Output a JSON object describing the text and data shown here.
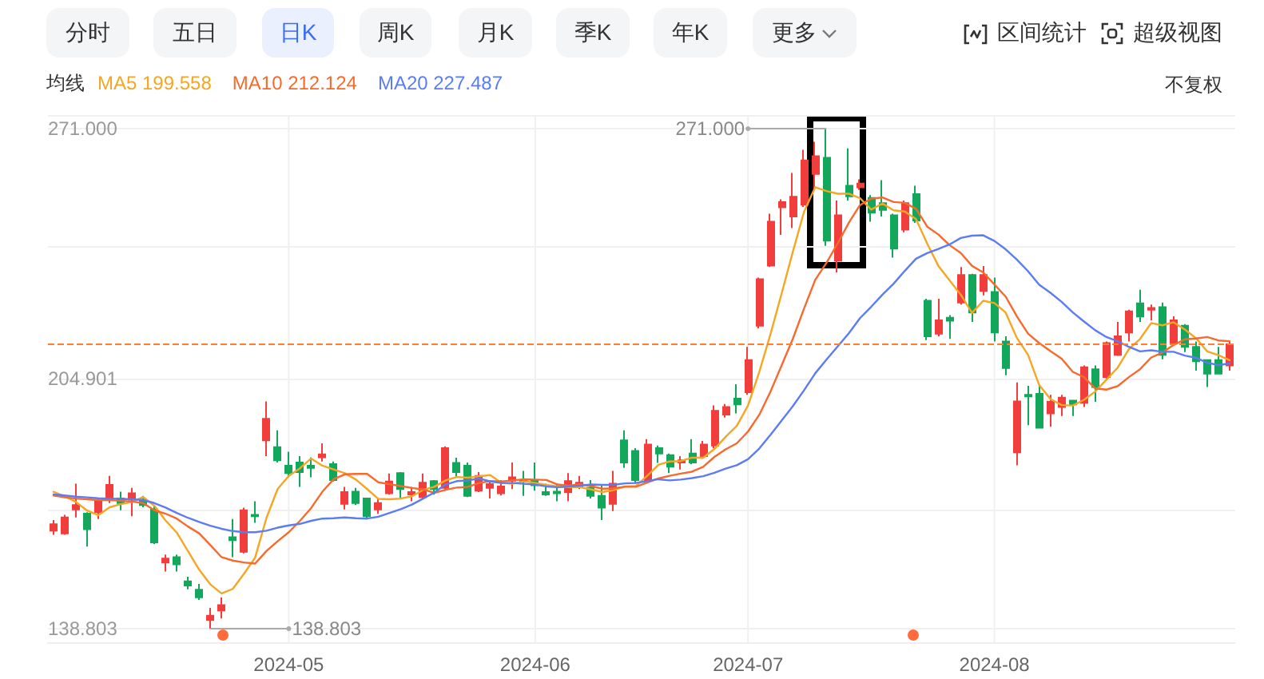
{
  "chart_data": {
    "type": "candlestick",
    "categories": [
      null,
      null,
      null,
      null,
      null,
      null,
      null,
      null,
      null,
      null,
      null,
      null,
      null,
      null,
      null,
      null,
      null,
      null,
      null,
      null,
      null,
      "2024-05",
      null,
      null,
      null,
      null,
      null,
      null,
      null,
      null,
      null,
      null,
      null,
      null,
      null,
      null,
      null,
      null,
      null,
      null,
      null,
      null,
      null,
      "2024-06",
      null,
      null,
      null,
      null,
      null,
      null,
      null,
      null,
      null,
      null,
      null,
      null,
      null,
      null,
      null,
      null,
      null,
      null,
      "2024-07",
      null,
      null,
      null,
      null,
      null,
      null,
      null,
      null,
      null,
      null,
      null,
      null,
      null,
      null,
      null,
      null,
      null,
      null,
      null,
      null,
      null,
      "2024-08",
      null,
      null,
      null,
      null,
      null,
      null,
      null,
      null,
      null,
      null,
      null,
      null,
      null,
      null,
      null,
      null,
      null,
      null,
      null,
      null,
      null
    ],
    "ohlc": [
      [
        164.7,
        167.5,
        163.6,
        166.4
      ],
      [
        164.0,
        168.9,
        163.6,
        168.2
      ],
      [
        170.3,
        177.1,
        168.2,
        171.5
      ],
      [
        169.2,
        169.6,
        160.5,
        165.1
      ],
      [
        169.6,
        173.2,
        167.8,
        172.9
      ],
      [
        172.9,
        179.2,
        172.0,
        176.8
      ],
      [
        173.2,
        175.0,
        170.1,
        172.0
      ],
      [
        172.9,
        176.0,
        168.5,
        174.6
      ],
      [
        172.9,
        173.9,
        170.9,
        171.5
      ],
      [
        170.3,
        171.1,
        161.2,
        161.6
      ],
      [
        156.3,
        158.4,
        153.9,
        157.3
      ],
      [
        157.7,
        158.4,
        153.9,
        155.8
      ],
      [
        151.3,
        152.5,
        149.2,
        150.2
      ],
      [
        149.1,
        150.6,
        146.4,
        147.1
      ],
      [
        141.1,
        144.3,
        138.803,
        142.2
      ],
      [
        143.6,
        147.1,
        141.5,
        145.0
      ],
      [
        163.0,
        167.8,
        157.7,
        162.2
      ],
      [
        159.1,
        170.8,
        158.7,
        170.1
      ],
      [
        168.9,
        172.5,
        166.8,
        168.5
      ],
      [
        188.6,
        198.9,
        184.4,
        194.3
      ],
      [
        186.8,
        191.2,
        182.7,
        183.3
      ],
      [
        181.9,
        185.6,
        178.8,
        179.9
      ],
      [
        182.7,
        184.4,
        176.3,
        180.2
      ],
      [
        181.9,
        184.1,
        178.8,
        181.3
      ],
      [
        184.1,
        187.8,
        183.0,
        184.9
      ],
      [
        182.3,
        183.0,
        177.7,
        178.1
      ],
      [
        171.8,
        176.3,
        170.3,
        174.9
      ],
      [
        175.0,
        176.0,
        171.5,
        172.0
      ],
      [
        173.2,
        173.4,
        167.8,
        168.5
      ],
      [
        170.3,
        173.2,
        169.2,
        172.0
      ],
      [
        174.6,
        179.8,
        174.2,
        177.7
      ],
      [
        179.9,
        180.2,
        173.4,
        175.7
      ],
      [
        174.3,
        176.3,
        172.5,
        174.9
      ],
      [
        173.6,
        179.8,
        173.2,
        177.4
      ],
      [
        177.8,
        178.1,
        174.2,
        175.7
      ],
      [
        176.0,
        187.0,
        175.3,
        186.5
      ],
      [
        182.6,
        184.0,
        178.8,
        180.2
      ],
      [
        181.9,
        182.7,
        173.6,
        173.9
      ],
      [
        175.3,
        180.2,
        174.9,
        179.2
      ],
      [
        176.0,
        177.7,
        173.2,
        177.0
      ],
      [
        174.6,
        178.1,
        174.0,
        176.4
      ],
      [
        177.9,
        182.7,
        175.7,
        178.8
      ],
      [
        178.1,
        180.5,
        173.9,
        177.7
      ],
      [
        178.1,
        182.7,
        175.3,
        176.7
      ],
      [
        174.9,
        177.1,
        173.9,
        174.3
      ],
      [
        175.0,
        177.1,
        172.5,
        174.6
      ],
      [
        174.9,
        179.9,
        172.5,
        177.8
      ],
      [
        176.3,
        179.2,
        175.7,
        177.4
      ],
      [
        176.0,
        178.1,
        173.2,
        173.9
      ],
      [
        173.9,
        176.7,
        167.5,
        170.8
      ],
      [
        171.8,
        180.5,
        169.9,
        177.1
      ],
      [
        188.6,
        191.2,
        181.3,
        182.7
      ],
      [
        185.8,
        186.5,
        177.1,
        178.1
      ],
      [
        178.1,
        188.9,
        177.7,
        187.5
      ],
      [
        186.5,
        187.2,
        182.6,
        185.1
      ],
      [
        184.7,
        185.1,
        179.9,
        181.6
      ],
      [
        182.7,
        184.4,
        180.9,
        183.3
      ],
      [
        185.1,
        188.9,
        182.3,
        182.7
      ],
      [
        184.4,
        188.4,
        183.7,
        187.5
      ],
      [
        187.2,
        197.8,
        186.5,
        196.4
      ],
      [
        195.4,
        198.2,
        194.6,
        197.4
      ],
      [
        199.6,
        203.4,
        195.7,
        198.1
      ],
      [
        201.3,
        213.3,
        200.6,
        209.8
      ],
      [
        218.9,
        231.6,
        218.2,
        231.2
      ],
      [
        234.8,
        248.5,
        234.4,
        246.4
      ],
      [
        250.2,
        252.3,
        242.9,
        251.6
      ],
      [
        247.8,
        259.3,
        244.7,
        253.0
      ],
      [
        250.9,
        265.4,
        250.3,
        262.6
      ],
      [
        259.0,
        267.5,
        254.8,
        263.7
      ],
      [
        263.3,
        271,
        240.0,
        241.4
      ],
      [
        236.1,
        252.0,
        233.0,
        248.1
      ],
      [
        255.9,
        265.8,
        252.0,
        253.1
      ],
      [
        255.5,
        257.6,
        254.8,
        256.5
      ],
      [
        252.7,
        253.4,
        246.4,
        248.8
      ],
      [
        251.3,
        257.4,
        247.8,
        249.5
      ],
      [
        248.1,
        248.5,
        236.9,
        239.3
      ],
      [
        244.3,
        252.0,
        243.6,
        251.3
      ],
      [
        253.7,
        255.9,
        246.1,
        246.7
      ],
      [
        225.5,
        226.0,
        215.1,
        216.1
      ],
      [
        216.8,
        226.0,
        216.1,
        220.3
      ],
      [
        221.0,
        221.7,
        215.4,
        220.2
      ],
      [
        225.0,
        234.4,
        224.5,
        232.3
      ],
      [
        232.3,
        232.6,
        219.9,
        222.4
      ],
      [
        228.1,
        234.7,
        226.9,
        232.3
      ],
      [
        227.8,
        231.6,
        214.7,
        217.1
      ],
      [
        214.7,
        216.1,
        205.8,
        207.7
      ],
      [
        185.4,
        203.9,
        182.0,
        198.9
      ],
      [
        200.6,
        203.0,
        192.6,
        200.2
      ],
      [
        200.9,
        203.0,
        191.8,
        191.9
      ],
      [
        195.7,
        200.6,
        192.2,
        198.8
      ],
      [
        197.4,
        200.6,
        195.0,
        199.9
      ],
      [
        199.1,
        199.2,
        195.0,
        198.1
      ],
      [
        198.5,
        208.4,
        197.4,
        207.9
      ],
      [
        207.4,
        208.4,
        198.8,
        202.7
      ],
      [
        205.3,
        214.7,
        204.8,
        214.3
      ],
      [
        211.2,
        219.9,
        210.9,
        216.1
      ],
      [
        217.1,
        223.1,
        214.7,
        222.7
      ],
      [
        224.8,
        228.4,
        219.9,
        221.3
      ],
      [
        223.1,
        224.5,
        220.3,
        223.6
      ],
      [
        223.8,
        225.0,
        210.0,
        211.2
      ],
      [
        214.3,
        221.4,
        213.7,
        220.3
      ],
      [
        218.9,
        219.3,
        211.9,
        213.3
      ],
      [
        213.3,
        214.7,
        207.0,
        209.5
      ],
      [
        209.8,
        210.0,
        202.7,
        206.2
      ],
      [
        209.8,
        213.3,
        206.1,
        206.2
      ],
      [
        208.4,
        214.7,
        207.0,
        214.0
      ]
    ],
    "colors": [
      "#f23d3d",
      "#f23d3d",
      "#f23d3d",
      "#12a75b",
      "#f23d3d",
      "#f23d3d",
      "#12a75b",
      "#f23d3d",
      "#12a75b",
      "#12a75b",
      "#f23d3d",
      "#12a75b",
      "#12a75b",
      "#12a75b",
      "#f23d3d",
      "#f23d3d",
      "#12a75b",
      "#f23d3d",
      "#12a75b",
      "#f23d3d",
      "#12a75b",
      "#12a75b",
      "#12a75b",
      "#12a75b",
      "#f23d3d",
      "#12a75b",
      "#f23d3d",
      "#12a75b",
      "#12a75b",
      "#f23d3d",
      "#f23d3d",
      "#12a75b",
      "#f23d3d",
      "#f23d3d",
      "#12a75b",
      "#f23d3d",
      "#12a75b",
      "#12a75b",
      "#f23d3d",
      "#f23d3d",
      "#f23d3d",
      "#f23d3d",
      "#12a75b",
      "#12a75b",
      "#12a75b",
      "#12a75b",
      "#f23d3d",
      "#f23d3d",
      "#12a75b",
      "#12a75b",
      "#f23d3d",
      "#12a75b",
      "#12a75b",
      "#f23d3d",
      "#12a75b",
      "#12a75b",
      "#f23d3d",
      "#12a75b",
      "#f23d3d",
      "#f23d3d",
      "#f23d3d",
      "#12a75b",
      "#f23d3d",
      "#f23d3d",
      "#f23d3d",
      "#f23d3d",
      "#f23d3d",
      "#f23d3d",
      "#f23d3d",
      "#12a75b",
      "#f23d3d",
      "#12a75b",
      "#f23d3d",
      "#12a75b",
      "#12a75b",
      "#12a75b",
      "#f23d3d",
      "#12a75b",
      "#12a75b",
      "#f23d3d",
      "#12a75b",
      "#f23d3d",
      "#12a75b",
      "#f23d3d",
      "#12a75b",
      "#12a75b",
      "#f23d3d",
      "#12a75b",
      "#12a75b",
      "#f23d3d",
      "#f23d3d",
      "#12a75b",
      "#f23d3d",
      "#12a75b",
      "#f23d3d",
      "#f23d3d",
      "#f23d3d",
      "#12a75b",
      "#f23d3d",
      "#12a75b",
      "#f23d3d",
      "#12a75b",
      "#12a75b",
      "#12a75b",
      "#12a75b",
      "#f23d3d"
    ],
    "series": [
      {
        "type": "line",
        "name": "MA5 199.558",
        "color": "#f5a623",
        "values": [
          175.0,
          173.8,
          172.3,
          170.0,
          168.8,
          170.9,
          171.7,
          172.3,
          173.6,
          171.3,
          167.4,
          164.2,
          159.3,
          154.4,
          150.5,
          148.1,
          149.3,
          153.3,
          157.6,
          168.0,
          175.7,
          179.2,
          181.2,
          183.8,
          181.9,
          180.9,
          179.9,
          178.2,
          175.7,
          173.1,
          173.0,
          173.2,
          173.8,
          175.5,
          176.3,
          178.0,
          178.9,
          178.7,
          179.1,
          179.4,
          177.3,
          177.1,
          177.8,
          177.3,
          176.8,
          176.4,
          176.2,
          176.2,
          175.6,
          174.9,
          175.4,
          176.4,
          176.5,
          179.2,
          182.1,
          183.0,
          183.1,
          184.0,
          184.0,
          186.3,
          189.5,
          192.4,
          197.8,
          206.6,
          216.6,
          227.4,
          238.4,
          249.0,
          255.5,
          254.5,
          253.8,
          253.8,
          252.6,
          249.6,
          251.2,
          249.4,
          249.1,
          247.1,
          240.6,
          234.7,
          230.9,
          227.1,
          222.3,
          225.5,
          224.9,
          222.4,
          215.7,
          211.2,
          203.2,
          199.5,
          197.9,
          197.8,
          199.3,
          201.5,
          204.6,
          207.8,
          212.7,
          215.4,
          219.6,
          219.0,
          219.8,
          217.9,
          215.6,
          212.1,
          211.1,
          209.8
        ]
      },
      {
        "type": "line",
        "name": "MA10 212.124",
        "color": "#f8692c",
        "values": [
          174.0,
          173.5,
          173.2,
          173.0,
          172.8,
          172.8,
          172.6,
          172.4,
          172.0,
          170.1,
          169.2,
          167.9,
          165.8,
          164.0,
          160.9,
          157.7,
          156.8,
          156.3,
          156.0,
          159.3,
          161.9,
          164.3,
          167.3,
          170.7,
          175.0,
          178.3,
          179.6,
          179.7,
          179.7,
          177.5,
          177.0,
          176.5,
          176.0,
          175.6,
          174.7,
          175.5,
          176.1,
          176.3,
          177.3,
          177.8,
          177.7,
          178.0,
          178.3,
          178.2,
          178.1,
          176.9,
          176.6,
          177.0,
          176.5,
          175.8,
          175.9,
          176.3,
          176.3,
          177.4,
          178.5,
          179.2,
          179.8,
          180.3,
          181.6,
          184.2,
          186.2,
          187.8,
          190.9,
          195.3,
          201.4,
          208.4,
          215.4,
          223.4,
          231.0,
          235.5,
          240.6,
          246.1,
          250.8,
          252.5,
          252.8,
          251.6,
          251.4,
          249.8,
          245.1,
          243.0,
          240.2,
          238.1,
          234.7,
          233.0,
          229.8,
          226.6,
          221.4,
          216.8,
          214.3,
          212.2,
          210.2,
          206.7,
          205.3,
          202.3,
          202.0,
          202.9,
          205.3,
          207.4,
          210.5,
          211.8,
          213.8,
          215.3,
          215.5,
          215.9,
          215.0,
          214.8
        ]
      },
      {
        "type": "line",
        "name": "MA20 227.487",
        "color": "#5b7cf5",
        "values": [
          174.3,
          174.0,
          173.7,
          173.5,
          173.3,
          173.2,
          173.1,
          173.0,
          172.8,
          172.0,
          170.8,
          169.4,
          168.1,
          167.0,
          166.0,
          165.2,
          164.6,
          164.3,
          164.3,
          164.7,
          165.5,
          166.1,
          166.5,
          167.3,
          167.9,
          168.0,
          168.2,
          168.0,
          167.9,
          168.4,
          169.4,
          170.4,
          171.6,
          173.2,
          174.8,
          176.9,
          177.8,
          178.0,
          178.5,
          177.7,
          177.3,
          177.3,
          177.1,
          176.9,
          176.4,
          176.2,
          176.4,
          176.6,
          176.9,
          176.8,
          176.8,
          177.2,
          177.3,
          177.8,
          178.3,
          178.0,
          178.2,
          178.6,
          179.1,
          180.0,
          181.1,
          182.0,
          183.6,
          186.4,
          190.0,
          193.8,
          197.6,
          201.8,
          206.3,
          209.9,
          213.4,
          216.9,
          220.9,
          223.9,
          227.1,
          230.0,
          233.4,
          236.6,
          238.1,
          239.2,
          240.4,
          242.1,
          242.7,
          242.8,
          241.3,
          239.1,
          236.4,
          233.3,
          229.7,
          227.6,
          225.2,
          222.4,
          220.0,
          217.7,
          215.9,
          214.8,
          213.3,
          212.1,
          212.4,
          212.0,
          212.0,
          211.0,
          210.4,
          209.1,
          208.5,
          208.9
        ]
      }
    ],
    "legend_title": "均线",
    "legend": "top left",
    "marker": "none",
    "grid": true,
    "ylim": [
      135.2,
      274.6
    ],
    "yticks": [
      {
        "value": 135.2,
        "label": null
      },
      {
        "value": 138.803,
        "label": "138.803"
      },
      {
        "value": 170.1,
        "label": null
      },
      {
        "value": 204.901,
        "label": "204.901"
      },
      {
        "value": 239.8,
        "label": null
      },
      {
        "value": 271,
        "label": "271.000"
      },
      {
        "value": 274.6,
        "label": null
      }
    ],
    "ref_lines": [
      {
        "axis": "y",
        "value": 214.0,
        "color": "#ff7f2e",
        "line_style": "dashed"
      }
    ],
    "annotations": [
      "分时",
      "五日",
      "日K",
      "周K",
      "月K",
      "季K",
      "年K",
      "更多",
      "区间统计",
      "超级视图",
      "不复权",
      "271.000",
      "138.803"
    ]
  }
}
